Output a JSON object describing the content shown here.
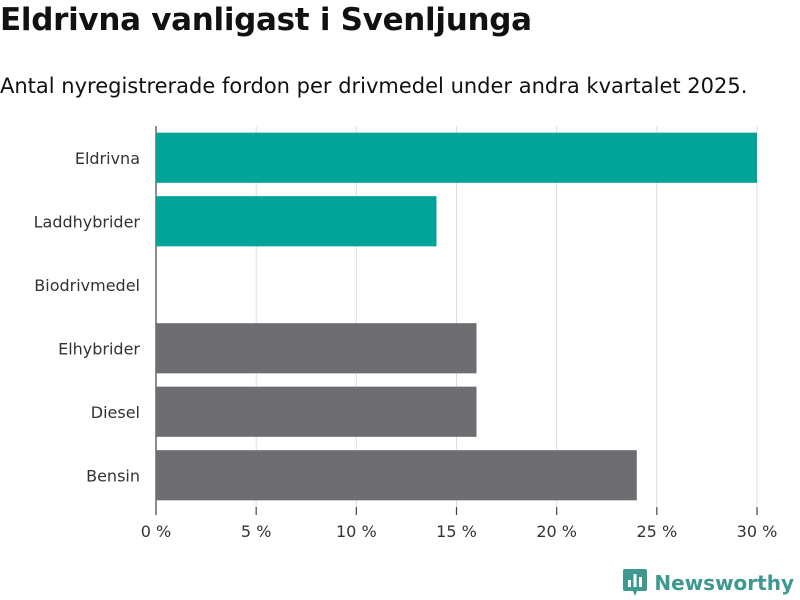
{
  "header": {
    "title": "Eldrivna vanligast i Svenljunga",
    "subtitle": "Antal nyregistrerade fordon per drivmedel under andra kvartalet 2025."
  },
  "logo": {
    "text": "Newsworthy",
    "icon": "bar-chart-icon",
    "color": "#3d9890"
  },
  "chart_data": {
    "type": "bar",
    "orientation": "horizontal",
    "title": "Eldrivna vanligast i Svenljunga",
    "subtitle": "Antal nyregistrerade fordon per drivmedel under andra kvartalet 2025.",
    "categories": [
      "Eldrivna",
      "Laddhybrider",
      "Biodrivmedel",
      "Elhybrider",
      "Diesel",
      "Bensin"
    ],
    "values": [
      30,
      14,
      0,
      16,
      16,
      24
    ],
    "unit": "%",
    "colors": [
      "#00a398",
      "#00a398",
      "#00a398",
      "#6e6d72",
      "#6e6d72",
      "#6e6d72"
    ],
    "xlim": [
      0,
      30
    ],
    "xticks": [
      0,
      5,
      10,
      15,
      20,
      25,
      30
    ],
    "xtick_labels": [
      "0 %",
      "5 %",
      "10 %",
      "15 %",
      "20 %",
      "25 %",
      "30 %"
    ],
    "grid": "vertical",
    "legend": "none"
  }
}
